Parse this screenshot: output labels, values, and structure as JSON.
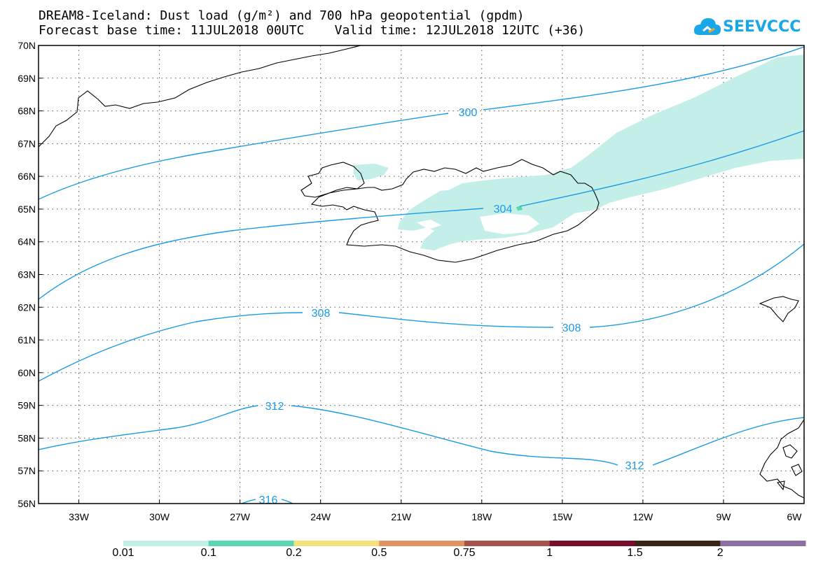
{
  "header": {
    "title_line1": "DREAM8-Iceland: Dust load (g/m²) and 700 hPa geopotential (gpdm)",
    "title_line2": "Forecast base time: 11JUL2018 00UTC    Valid time: 12JUL2018 12UTC (+36)"
  },
  "logo": {
    "text": "SEEVCCC",
    "icon": "cloud-icon",
    "color": "#1aa7e8"
  },
  "map": {
    "lon_range": [
      -34.5,
      -6
    ],
    "lat_range": [
      56,
      70
    ],
    "lon_ticks": [
      "33W",
      "30W",
      "27W",
      "24W",
      "21W",
      "18W",
      "15W",
      "12W",
      "9W",
      "6W"
    ],
    "lat_ticks": [
      "56N",
      "57N",
      "58N",
      "59N",
      "60N",
      "61N",
      "62N",
      "63N",
      "64N",
      "65N",
      "66N",
      "67N",
      "68N",
      "69N",
      "70N"
    ],
    "grid": "dotted",
    "contour_color": "#1a9be6",
    "contours": [
      {
        "label": "300"
      },
      {
        "label": "304"
      },
      {
        "label": "308"
      },
      {
        "label": "312"
      },
      {
        "label": "316"
      }
    ],
    "dust_fill_color": "#c4efe9",
    "coastline_color": "#000000"
  },
  "colorbar": {
    "labels": [
      "0.01",
      "0.1",
      "0.2",
      "0.5",
      "0.75",
      "1",
      "1.5",
      "2"
    ],
    "colors": [
      "#c4efe9",
      "#5ad6b0",
      "#f5e27b",
      "#e39264",
      "#a5524b",
      "#7a0f2d",
      "#3a2412",
      "#8c6fa3"
    ]
  }
}
